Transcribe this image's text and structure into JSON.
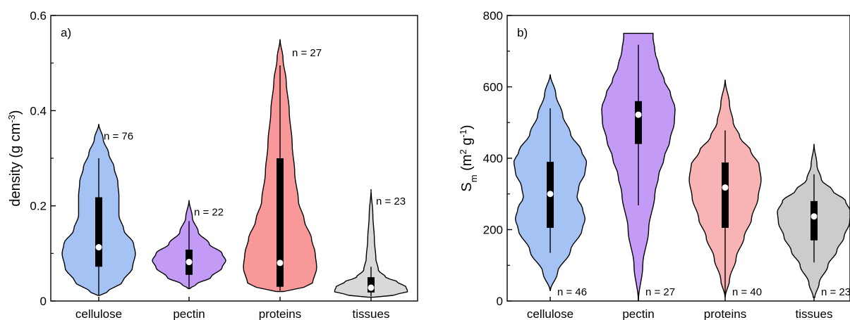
{
  "chart_data": [
    {
      "type": "violin",
      "panel_label": "a)",
      "ylabel": "density (g cm",
      "ylabel_sup": "-3",
      "ylabel_end": ")",
      "ylim": [
        0,
        0.6
      ],
      "yticks": [
        {
          "value": 0,
          "label": "0"
        },
        {
          "value": 0.2,
          "label": "0.2"
        },
        {
          "value": 0.4,
          "label": "0.4"
        },
        {
          "value": 0.6,
          "label": "0.6"
        }
      ],
      "minor_ticks": [
        0.1,
        0.3,
        0.5
      ],
      "categories": [
        "cellulose",
        "pectin",
        "proteins",
        "tissues"
      ],
      "series": [
        {
          "name": "cellulose",
          "color": "#a4c2f4",
          "n_label": "n = 76",
          "min": 0.012,
          "max": 0.3,
          "q1": 0.072,
          "median": 0.113,
          "q3": 0.218,
          "violin_top": 0.372,
          "violin_bottom": 0.012,
          "profile": [
            [
              0.012,
              0.03
            ],
            [
              0.02,
              0.25
            ],
            [
              0.04,
              0.65
            ],
            [
              0.07,
              0.92
            ],
            [
              0.1,
              1.0
            ],
            [
              0.12,
              0.95
            ],
            [
              0.15,
              0.68
            ],
            [
              0.18,
              0.55
            ],
            [
              0.22,
              0.55
            ],
            [
              0.25,
              0.52
            ],
            [
              0.28,
              0.42
            ],
            [
              0.31,
              0.27
            ],
            [
              0.34,
              0.12
            ],
            [
              0.372,
              0.0
            ]
          ]
        },
        {
          "name": "pectin",
          "color": "#c39af5",
          "n_label": "n = 22",
          "min": 0.025,
          "max": 0.168,
          "q1": 0.055,
          "median": 0.082,
          "q3": 0.108,
          "violin_top": 0.212,
          "violin_bottom": 0.026,
          "profile": [
            [
              0.026,
              0.02
            ],
            [
              0.035,
              0.2
            ],
            [
              0.05,
              0.6
            ],
            [
              0.07,
              0.9
            ],
            [
              0.085,
              1.0
            ],
            [
              0.1,
              0.9
            ],
            [
              0.12,
              0.55
            ],
            [
              0.145,
              0.25
            ],
            [
              0.175,
              0.09
            ],
            [
              0.212,
              0.0
            ]
          ]
        },
        {
          "name": "proteins",
          "color": "#f89898",
          "n_label": "n = 27",
          "min": 0.022,
          "max": 0.495,
          "q1": 0.03,
          "median": 0.08,
          "q3": 0.3,
          "violin_top": 0.55,
          "violin_bottom": 0.02,
          "profile": [
            [
              0.02,
              0.1
            ],
            [
              0.025,
              0.6
            ],
            [
              0.04,
              0.9
            ],
            [
              0.07,
              1.0
            ],
            [
              0.1,
              0.96
            ],
            [
              0.13,
              0.86
            ],
            [
              0.17,
              0.66
            ],
            [
              0.21,
              0.5
            ],
            [
              0.27,
              0.4
            ],
            [
              0.33,
              0.33
            ],
            [
              0.4,
              0.25
            ],
            [
              0.46,
              0.17
            ],
            [
              0.51,
              0.08
            ],
            [
              0.55,
              0.0
            ]
          ]
        },
        {
          "name": "tissues",
          "color": "#d9d9d9",
          "n_label": "n = 23",
          "min": 0.01,
          "max": 0.072,
          "q1": 0.018,
          "median": 0.028,
          "q3": 0.05,
          "violin_top": 0.235,
          "violin_bottom": 0.008,
          "profile": [
            [
              0.008,
              0.08
            ],
            [
              0.012,
              0.6
            ],
            [
              0.02,
              1.0
            ],
            [
              0.03,
              0.95
            ],
            [
              0.04,
              0.72
            ],
            [
              0.05,
              0.4
            ],
            [
              0.065,
              0.2
            ],
            [
              0.09,
              0.13
            ],
            [
              0.13,
              0.09
            ],
            [
              0.18,
              0.05
            ],
            [
              0.235,
              0.0
            ]
          ]
        }
      ]
    },
    {
      "type": "violin",
      "panel_label": "b)",
      "ylabel": "S",
      "ylabel_sub": "m",
      "ylabel_mid": " (m",
      "ylabel_sup1": "2",
      "ylabel_mid2": " g",
      "ylabel_sup2": "-1",
      "ylabel_end": ")",
      "ylim": [
        0,
        800
      ],
      "yticks": [
        {
          "value": 0,
          "label": "0"
        },
        {
          "value": 200,
          "label": "200"
        },
        {
          "value": 400,
          "label": "400"
        },
        {
          "value": 600,
          "label": "600"
        },
        {
          "value": 800,
          "label": "800"
        }
      ],
      "minor_ticks": [
        100,
        300,
        500,
        700
      ],
      "categories": [
        "cellulose",
        "pectin",
        "proteins",
        "tissues"
      ],
      "series": [
        {
          "name": "cellulose",
          "color": "#a4c2f4",
          "n_label": "n = 46",
          "min": 135,
          "max": 540,
          "q1": 205,
          "median": 300,
          "q3": 390,
          "violin_top": 635,
          "violin_bottom": 28,
          "profile": [
            [
              28,
              0.0
            ],
            [
              80,
              0.2
            ],
            [
              140,
              0.55
            ],
            [
              200,
              0.87
            ],
            [
              230,
              0.95
            ],
            [
              260,
              0.88
            ],
            [
              290,
              0.73
            ],
            [
              320,
              0.78
            ],
            [
              360,
              0.95
            ],
            [
              390,
              0.99
            ],
            [
              420,
              0.85
            ],
            [
              470,
              0.55
            ],
            [
              520,
              0.34
            ],
            [
              580,
              0.15
            ],
            [
              635,
              0.0
            ]
          ]
        },
        {
          "name": "pectin",
          "color": "#c39af5",
          "n_label": "n = 27",
          "min": 268,
          "max": 718,
          "q1": 440,
          "median": 522,
          "q3": 560,
          "violin_top": 750,
          "violin_bottom": 0,
          "profile": [
            [
              0,
              0.0
            ],
            [
              100,
              0.12
            ],
            [
              200,
              0.28
            ],
            [
              300,
              0.45
            ],
            [
              350,
              0.55
            ],
            [
              400,
              0.7
            ],
            [
              450,
              0.86
            ],
            [
              500,
              0.98
            ],
            [
              540,
              1.0
            ],
            [
              580,
              0.88
            ],
            [
              620,
              0.7
            ],
            [
              660,
              0.55
            ],
            [
              700,
              0.45
            ],
            [
              740,
              0.4
            ],
            [
              750,
              0.4
            ]
          ]
        },
        {
          "name": "proteins",
          "color": "#f8b4b4",
          "n_label": "n = 40",
          "min": 12,
          "max": 478,
          "q1": 205,
          "median": 318,
          "q3": 388,
          "violin_top": 620,
          "violin_bottom": 10,
          "profile": [
            [
              10,
              0.0
            ],
            [
              60,
              0.12
            ],
            [
              120,
              0.3
            ],
            [
              180,
              0.52
            ],
            [
              230,
              0.72
            ],
            [
              290,
              0.9
            ],
            [
              340,
              0.98
            ],
            [
              380,
              0.93
            ],
            [
              420,
              0.7
            ],
            [
              460,
              0.4
            ],
            [
              500,
              0.22
            ],
            [
              550,
              0.12
            ],
            [
              620,
              0.0
            ]
          ]
        },
        {
          "name": "tissues",
          "color": "#cccccc",
          "n_label": "n = 23",
          "min": 108,
          "max": 355,
          "q1": 170,
          "median": 237,
          "q3": 280,
          "violin_top": 440,
          "violin_bottom": 10,
          "profile": [
            [
              10,
              0.02
            ],
            [
              50,
              0.14
            ],
            [
              100,
              0.38
            ],
            [
              140,
              0.62
            ],
            [
              180,
              0.82
            ],
            [
              220,
              0.97
            ],
            [
              250,
              1.0
            ],
            [
              280,
              0.86
            ],
            [
              310,
              0.5
            ],
            [
              340,
              0.2
            ],
            [
              380,
              0.08
            ],
            [
              440,
              0.0
            ]
          ]
        }
      ]
    }
  ]
}
